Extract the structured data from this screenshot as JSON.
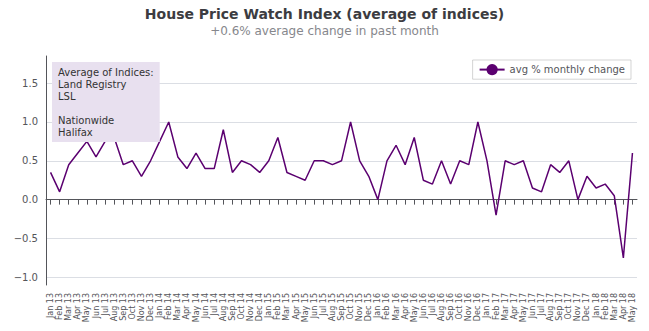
{
  "chart_data": {
    "type": "line",
    "title": "House Price Watch Index (average of indices)",
    "subtitle": "+0.6% average change in past month",
    "categories": [
      "Jan 13",
      "Feb 13",
      "Mar 13",
      "Apr 13",
      "May 13",
      "Jun 13",
      "Jul 13",
      "Aug 13",
      "Sep 13",
      "Oct 13",
      "Nov 13",
      "Dec 13",
      "Jan 14",
      "Feb 14",
      "Mar 14",
      "Apr 14",
      "May 14",
      "Jun 14",
      "Jul 14",
      "Aug 14",
      "Sep 14",
      "Oct 14",
      "Nov 14",
      "Dec 14",
      "Jan 15",
      "Feb 15",
      "Mar 15",
      "Apr 15",
      "May 15",
      "Jun 15",
      "Jul 15",
      "Aug 15",
      "Sep 15",
      "Oct 15",
      "Nov 15",
      "Dec 15",
      "Jan 16",
      "Feb 16",
      "Mar 16",
      "Apr 16",
      "May 16",
      "Jun 16",
      "Jul 16",
      "Aug 16",
      "Sep 16",
      "Oct 16",
      "Nov 16",
      "Dec 16",
      "Jan 17",
      "Feb 17",
      "Mar 17",
      "Apr 17",
      "May 17",
      "Jun 17",
      "Jul 17",
      "Aug 17",
      "Sep 17",
      "Oct 17",
      "Nov 17",
      "Dec 17",
      "Jan 18",
      "Feb 18",
      "Mar 18",
      "Apr 18",
      "May 18"
    ],
    "series": [
      {
        "name": "avg % monthly change",
        "color": "#5B0070",
        "values": [
          0.35,
          0.1,
          0.45,
          0.6,
          0.75,
          0.55,
          0.75,
          0.8,
          0.45,
          0.5,
          0.3,
          0.5,
          0.75,
          1.0,
          0.55,
          0.4,
          0.6,
          0.4,
          0.4,
          0.9,
          0.35,
          0.5,
          0.45,
          0.35,
          0.5,
          0.8,
          0.35,
          0.3,
          0.25,
          0.5,
          0.5,
          0.45,
          0.5,
          1.0,
          0.5,
          0.3,
          0.0,
          0.5,
          0.7,
          0.45,
          0.8,
          0.25,
          0.2,
          0.5,
          0.2,
          0.5,
          0.45,
          1.0,
          0.5,
          -0.2,
          0.5,
          0.45,
          0.5,
          0.15,
          0.1,
          0.45,
          0.35,
          0.5,
          0.0,
          0.3,
          0.15,
          0.2,
          0.05,
          -0.75,
          0.6
        ]
      }
    ],
    "ylim": [
      -1.1,
      1.85
    ],
    "yticks": [
      {
        "value": -1,
        "label": "−1.0"
      },
      {
        "value": -0.5,
        "label": "−0.5"
      },
      {
        "value": 0,
        "label": "0.0"
      },
      {
        "value": 0.5,
        "label": "0.5"
      },
      {
        "value": 1,
        "label": "1.0"
      },
      {
        "value": 1.5,
        "label": "1.5"
      }
    ],
    "grid": true,
    "legend": "upper right",
    "annotations": [
      {
        "text": "Average of Indices:\nLand Registry\nLSL\n\nNationwide\nHalifax",
        "color": "#E8E0EF"
      }
    ]
  }
}
